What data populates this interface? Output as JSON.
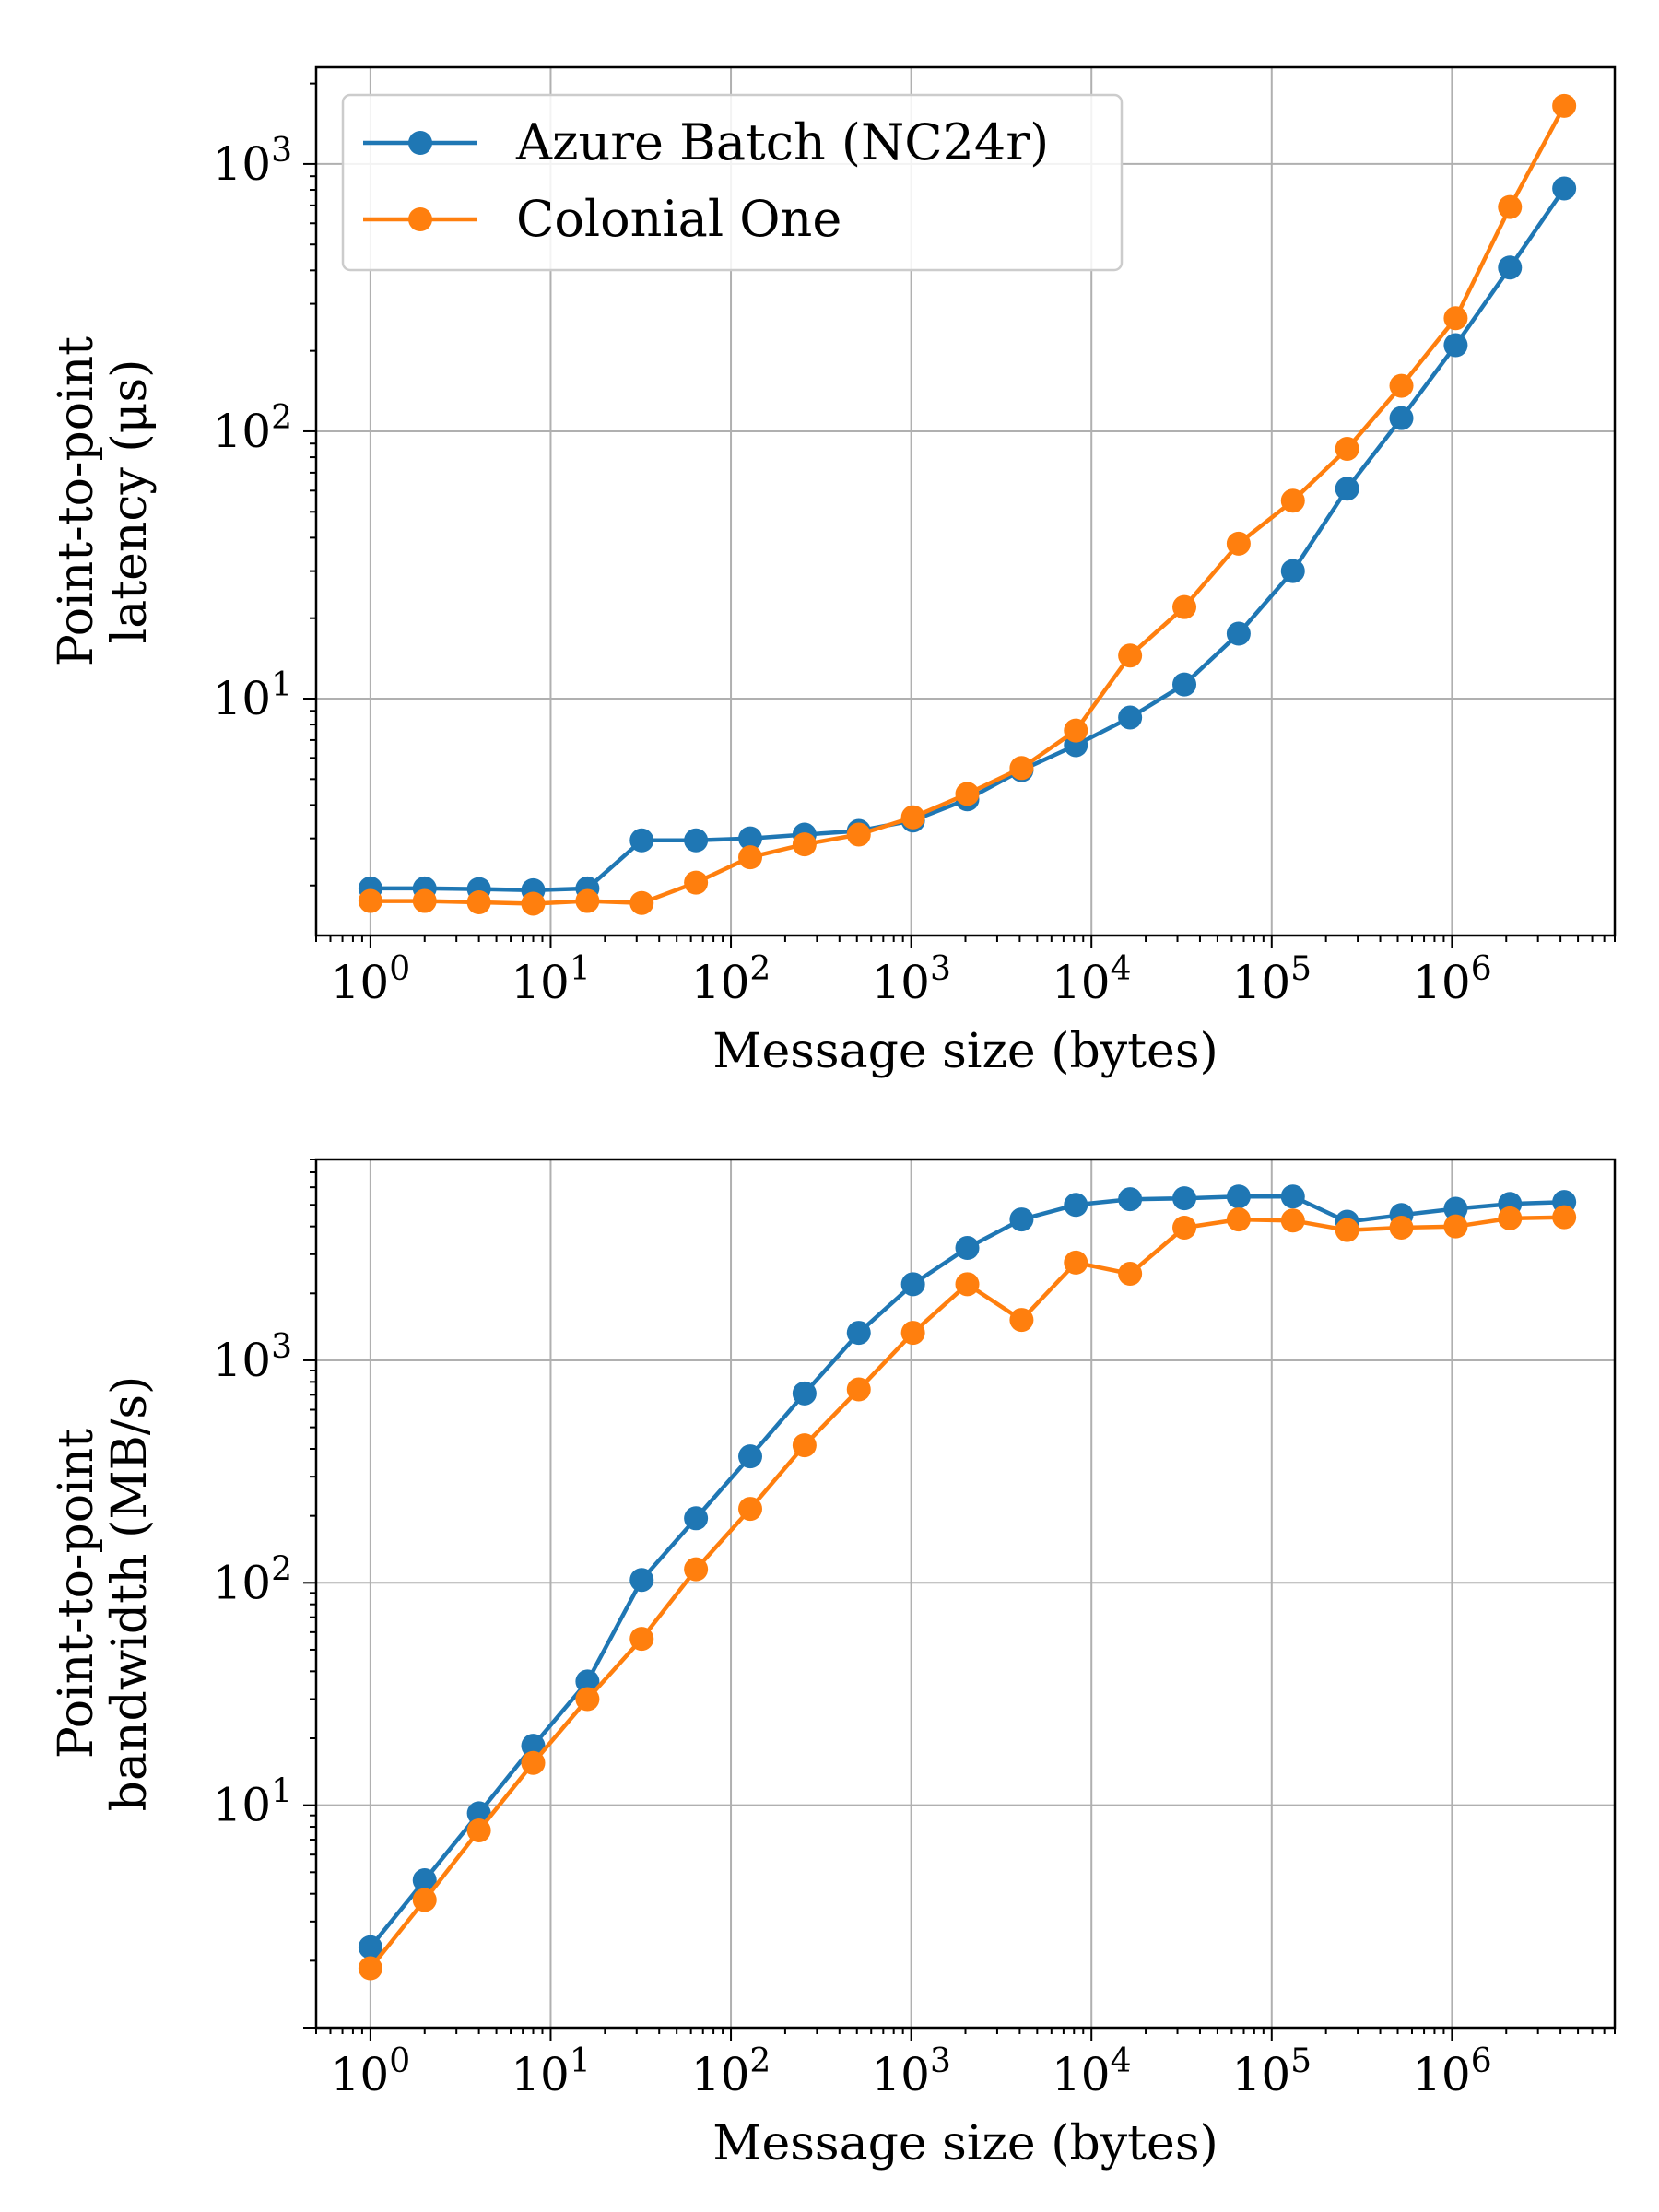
{
  "colors": {
    "azure": "#1f77b4",
    "colonial": "#ff7f0e",
    "grid": "#b0b0b0"
  },
  "chart_data": [
    {
      "type": "line",
      "xscale": "log",
      "yscale": "log",
      "grid": true,
      "legend_position": "top-left",
      "xlabel": "Message size (bytes)",
      "ylabel": [
        "Point-to-point",
        "latency (μs)"
      ],
      "xlim": [
        0.5,
        8000000
      ],
      "ylim": [
        1.3,
        2300
      ],
      "x_ticks": [
        {
          "value": 1,
          "base": "10",
          "exp": "0"
        },
        {
          "value": 10,
          "base": "10",
          "exp": "1"
        },
        {
          "value": 100,
          "base": "10",
          "exp": "2"
        },
        {
          "value": 1000,
          "base": "10",
          "exp": "3"
        },
        {
          "value": 10000,
          "base": "10",
          "exp": "4"
        },
        {
          "value": 100000,
          "base": "10",
          "exp": "5"
        },
        {
          "value": 1000000,
          "base": "10",
          "exp": "6"
        }
      ],
      "y_ticks": [
        {
          "value": 10,
          "base": "10",
          "exp": "1"
        },
        {
          "value": 100,
          "base": "10",
          "exp": "2"
        },
        {
          "value": 1000,
          "base": "10",
          "exp": "3"
        }
      ],
      "x": [
        1,
        2,
        4,
        8,
        16,
        32,
        64,
        128,
        256,
        512,
        1024,
        2048,
        4096,
        8192,
        16384,
        32768,
        65536,
        131072,
        262144,
        524288,
        1048576,
        2097152,
        4194304
      ],
      "series": [
        {
          "name": "Azure Batch (NC24r)",
          "color_key": "azure",
          "values": [
            1.95,
            1.95,
            1.94,
            1.92,
            1.95,
            2.95,
            2.95,
            3.0,
            3.1,
            3.2,
            3.5,
            4.2,
            5.4,
            6.7,
            8.5,
            11.3,
            17.5,
            30.0,
            61.0,
            112.0,
            210.0,
            410.0,
            810.0
          ]
        },
        {
          "name": "Colonial One",
          "color_key": "colonial",
          "values": [
            1.75,
            1.75,
            1.73,
            1.71,
            1.75,
            1.72,
            2.05,
            2.55,
            2.85,
            3.1,
            3.6,
            4.4,
            5.5,
            7.6,
            14.5,
            22.0,
            38.0,
            55.0,
            86.0,
            148.0,
            265.0,
            690.0,
            1650.0
          ]
        }
      ]
    },
    {
      "type": "line",
      "xscale": "log",
      "yscale": "log",
      "grid": true,
      "xlabel": "Message size (bytes)",
      "ylabel": [
        "Point-to-point",
        "bandwidth (MB/s)"
      ],
      "xlim": [
        0.5,
        8000000
      ],
      "ylim": [
        1.0,
        8000
      ],
      "x_ticks": [
        {
          "value": 1,
          "base": "10",
          "exp": "0"
        },
        {
          "value": 10,
          "base": "10",
          "exp": "1"
        },
        {
          "value": 100,
          "base": "10",
          "exp": "2"
        },
        {
          "value": 1000,
          "base": "10",
          "exp": "3"
        },
        {
          "value": 10000,
          "base": "10",
          "exp": "4"
        },
        {
          "value": 100000,
          "base": "10",
          "exp": "5"
        },
        {
          "value": 1000000,
          "base": "10",
          "exp": "6"
        }
      ],
      "y_ticks": [
        {
          "value": 10,
          "base": "10",
          "exp": "1"
        },
        {
          "value": 100,
          "base": "10",
          "exp": "2"
        },
        {
          "value": 1000,
          "base": "10",
          "exp": "3"
        }
      ],
      "x": [
        1,
        2,
        4,
        8,
        16,
        32,
        64,
        128,
        256,
        512,
        1024,
        2048,
        4096,
        8192,
        16384,
        32768,
        65536,
        131072,
        262144,
        524288,
        1048576,
        2097152,
        4194304
      ],
      "series": [
        {
          "name": "Azure Batch (NC24r)",
          "color_key": "azure",
          "values": [
            2.3,
            4.6,
            9.2,
            18.5,
            36.0,
            103.0,
            195.0,
            370.0,
            710.0,
            1330.0,
            2200.0,
            3200.0,
            4300.0,
            5000.0,
            5300.0,
            5350.0,
            5450.0,
            5450.0,
            4200.0,
            4500.0,
            4800.0,
            5050.0,
            5150.0
          ]
        },
        {
          "name": "Colonial One",
          "color_key": "colonial",
          "values": [
            1.85,
            3.75,
            7.7,
            15.5,
            30.0,
            56.0,
            115.0,
            215.0,
            415.0,
            740.0,
            1330.0,
            2200.0,
            1520.0,
            2750.0,
            2450.0,
            3950.0,
            4300.0,
            4250.0,
            3850.0,
            3950.0,
            4000.0,
            4350.0,
            4400.0
          ]
        }
      ]
    }
  ]
}
